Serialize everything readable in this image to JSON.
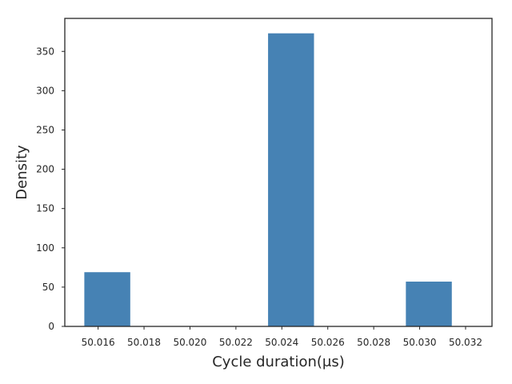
{
  "chart_data": {
    "type": "bar",
    "title": "",
    "xlabel": "Cycle duration(μs)",
    "ylabel": "Density",
    "xlim": [
      50.01455,
      50.03315
    ],
    "ylim": [
      0,
      392
    ],
    "grid": false,
    "x_ticks": [
      "50.016",
      "50.018",
      "50.020",
      "50.022",
      "50.024",
      "50.026",
      "50.028",
      "50.030",
      "50.032"
    ],
    "x_tick_values": [
      50.016,
      50.018,
      50.02,
      50.022,
      50.024,
      50.026,
      50.028,
      50.03,
      50.032
    ],
    "y_ticks": [
      "0",
      "50",
      "100",
      "150",
      "200",
      "250",
      "300",
      "350"
    ],
    "y_tick_values": [
      0,
      50,
      100,
      150,
      200,
      250,
      300,
      350
    ],
    "bar_color": "#4682b4",
    "bins": [
      {
        "start": 50.0154,
        "end": 50.0174,
        "value": 69
      },
      {
        "start": 50.0174,
        "end": 50.0194,
        "value": 0
      },
      {
        "start": 50.0194,
        "end": 50.0214,
        "value": 0
      },
      {
        "start": 50.0214,
        "end": 50.0234,
        "value": 0
      },
      {
        "start": 50.0234,
        "end": 50.0254,
        "value": 373
      },
      {
        "start": 50.0254,
        "end": 50.0274,
        "value": 0
      },
      {
        "start": 50.0274,
        "end": 50.0294,
        "value": 0
      },
      {
        "start": 50.0294,
        "end": 50.0314,
        "value": 57
      }
    ]
  }
}
